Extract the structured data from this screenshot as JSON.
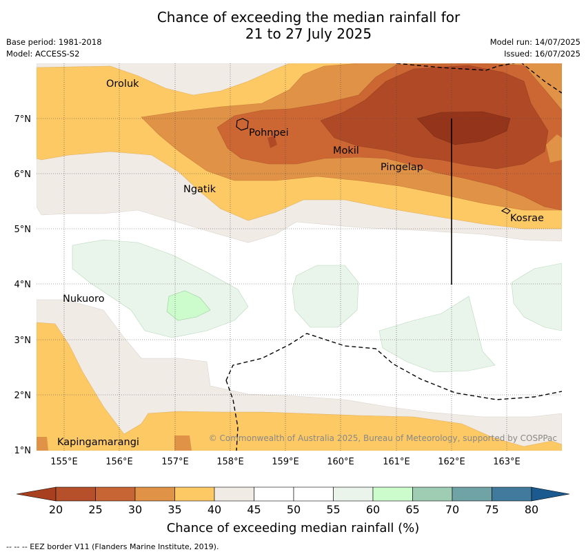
{
  "title_line1": "Chance of exceeding the median rainfall for",
  "title_line2": "21 to 27 July 2025",
  "base_period": "Base period: 1981-2018",
  "model": "Model: ACCESS-S2",
  "model_run": "Model run: 14/07/2025",
  "issued": "Issued: 16/07/2025",
  "copyright": "© Commonwealth of Australia 2025, Bureau of Meteorology, supported by COSPPac",
  "footnote": "--  --  -- EEZ border V11 (Flanders Marine Institute, 2019).",
  "lon_ticks": [
    "155°E",
    "156°E",
    "157°E",
    "158°E",
    "159°E",
    "160°E",
    "161°E",
    "162°E",
    "163°E"
  ],
  "lat_ticks": [
    "7°N",
    "6°N",
    "5°N",
    "4°N",
    "3°N",
    "2°N",
    "1°N"
  ],
  "places": [
    "Oroluk",
    "Pohnpei",
    "Mokil",
    "Pingelap",
    "Ngatik",
    "Kosrae",
    "Nukuoro",
    "Kapingamarangi"
  ],
  "colorbar": {
    "title": "Chance of exceeding median rainfall (%)",
    "labels": [
      "20",
      "25",
      "30",
      "35",
      "40",
      "45",
      "50",
      "55",
      "60",
      "65",
      "70",
      "75",
      "80"
    ],
    "colors": [
      "#a8401f",
      "#b5502a",
      "#c86535",
      "#e09346",
      "#fdc964",
      "#f1ebe6",
      "#ffffff",
      "#ffffff",
      "#eaf4ea",
      "#ccfccc",
      "#9fcdb4",
      "#6fa3a6",
      "#417a9c",
      "#1b5a8e"
    ]
  },
  "map_colors": {
    "c20": "#94341a",
    "c25": "#b04a26",
    "c30": "#cc6733",
    "c35": "#e09346",
    "c40": "#fdc964",
    "c45": "#f1ebe6",
    "c50": "#ffffff",
    "c55": "#e9f4ea",
    "c60": "#ccfccc"
  }
}
